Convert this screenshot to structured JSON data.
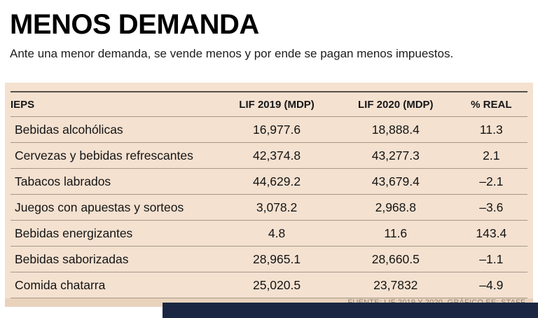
{
  "header": {
    "title": "MENOS DEMANDA",
    "subtitle": "Ante una menor demanda, se vende menos y por ende se pagan menos impuestos."
  },
  "table": {
    "columns": [
      "IEPS",
      "LIF 2019 (MDP)",
      "LIF 2020 (MDP)",
      "% REAL"
    ],
    "rows": [
      {
        "name": "Bebidas alcohólicas",
        "lif2019": "16,977.6",
        "lif2020": "18,888.4",
        "real": "11.3"
      },
      {
        "name": "Cervezas y bebidas refrescantes",
        "lif2019": "42,374.8",
        "lif2020": "43,277.3",
        "real": "2.1"
      },
      {
        "name": "Tabacos labrados",
        "lif2019": "44,629.2",
        "lif2020": "43,679.4",
        "real": "–2.1"
      },
      {
        "name": "Juegos con apuestas y sorteos",
        "lif2019": "3,078.2",
        "lif2020": "2,968.8",
        "real": "–3.6"
      },
      {
        "name": "Bebidas energizantes",
        "lif2019": "4.8",
        "lif2020": "11.6",
        "real": "143.4"
      },
      {
        "name": "Bebidas saborizadas",
        "lif2019": "28,965.1",
        "lif2020": "28,660.5",
        "real": "–1.1"
      },
      {
        "name": "Comida chatarra",
        "lif2019": "25,020.5",
        "lif2020": "23,7832",
        "real": "–4.9"
      }
    ]
  },
  "footer": {
    "source": "FUENTE: LIF 2019 Y 2020. GRÁFICO EE: STAFF."
  },
  "colors": {
    "panel_background": "#f4e1d0",
    "source_band": "#e9d2bc",
    "bottom_bar": "#1b2742",
    "rule": "#a5988a"
  },
  "chart_data": {
    "type": "table",
    "title": "MENOS DEMANDA",
    "subtitle": "Ante una menor demanda, se vende menos y por ende se pagan menos impuestos.",
    "columns": [
      "IEPS",
      "LIF 2019 (MDP)",
      "LIF 2020 (MDP)",
      "% REAL"
    ],
    "rows": [
      [
        "Bebidas alcohólicas",
        "16,977.6",
        "18,888.4",
        "11.3"
      ],
      [
        "Cervezas y bebidas refrescantes",
        "42,374.8",
        "43,277.3",
        "2.1"
      ],
      [
        "Tabacos labrados",
        "44,629.2",
        "43,679.4",
        "–2.1"
      ],
      [
        "Juegos con apuestas y sorteos",
        "3,078.2",
        "2,968.8",
        "–3.6"
      ],
      [
        "Bebidas energizantes",
        "4.8",
        "11.6",
        "143.4"
      ],
      [
        "Bebidas saborizadas",
        "28,965.1",
        "28,660.5",
        "–1.1"
      ],
      [
        "Comida chatarra",
        "25,020.5",
        "23,7832",
        "–4.9"
      ]
    ],
    "source": "FUENTE: LIF 2019 Y 2020. GRÁFICO EE: STAFF."
  }
}
